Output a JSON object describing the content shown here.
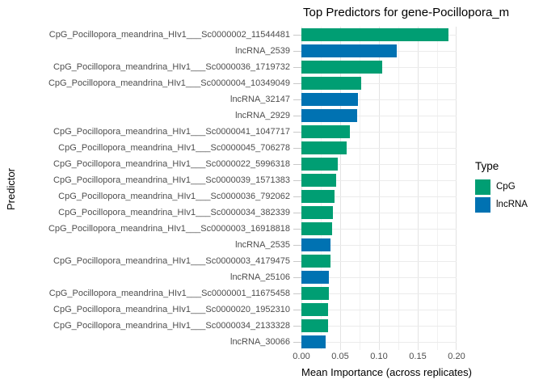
{
  "colors": {
    "background": "#ffffff",
    "cpg": "#009E73",
    "lncrna": "#0072B2",
    "grid_major": "#e3e3e3",
    "grid_minor": "#f1f1f1",
    "axis_text": "#4d4d4d",
    "tick": "#c9c9c9",
    "text": "#000000"
  },
  "chart_data": {
    "type": "bar",
    "orientation": "horizontal",
    "title": "Top Predictors for gene-Pocillopora_m",
    "xlabel": "Mean Importance (across replicates)",
    "ylabel": "Predictor",
    "xlim": [
      0,
      0.2
    ],
    "xticks": [
      0.0,
      0.05,
      0.1,
      0.15,
      0.2
    ],
    "xtick_labels": [
      "0.00",
      "0.05",
      "0.10",
      "0.15",
      "0.20"
    ],
    "grid": true,
    "legend": {
      "title": "Type",
      "position": "right",
      "entries": [
        {
          "label": "CpG",
          "color": "#009E73"
        },
        {
          "label": "lncRNA",
          "color": "#0072B2"
        }
      ]
    },
    "bars": [
      {
        "label": "CpG_Pocillopora_meandrina_HIv1___Sc0000002_11544481",
        "type": "CpG",
        "value": 0.19
      },
      {
        "label": "lncRNA_2539",
        "type": "lncRNA",
        "value": 0.123
      },
      {
        "label": "CpG_Pocillopora_meandrina_HIv1___Sc0000036_1719732",
        "type": "CpG",
        "value": 0.104
      },
      {
        "label": "CpG_Pocillopora_meandrina_HIv1___Sc0000004_10349049",
        "type": "CpG",
        "value": 0.077
      },
      {
        "label": "lncRNA_32147",
        "type": "lncRNA",
        "value": 0.073
      },
      {
        "label": "lncRNA_2929",
        "type": "lncRNA",
        "value": 0.072
      },
      {
        "label": "CpG_Pocillopora_meandrina_HIv1___Sc0000041_1047717",
        "type": "CpG",
        "value": 0.063
      },
      {
        "label": "CpG_Pocillopora_meandrina_HIv1___Sc0000045_706278",
        "type": "CpG",
        "value": 0.058
      },
      {
        "label": "CpG_Pocillopora_meandrina_HIv1___Sc0000022_5996318",
        "type": "CpG",
        "value": 0.047
      },
      {
        "label": "CpG_Pocillopora_meandrina_HIv1___Sc0000039_1571383",
        "type": "CpG",
        "value": 0.045
      },
      {
        "label": "CpG_Pocillopora_meandrina_HIv1___Sc0000036_792062",
        "type": "CpG",
        "value": 0.043
      },
      {
        "label": "CpG_Pocillopora_meandrina_HIv1___Sc0000034_382339",
        "type": "CpG",
        "value": 0.041
      },
      {
        "label": "CpG_Pocillopora_meandrina_HIv1___Sc0000003_16918818",
        "type": "CpG",
        "value": 0.04
      },
      {
        "label": "lncRNA_2535",
        "type": "lncRNA",
        "value": 0.038
      },
      {
        "label": "CpG_Pocillopora_meandrina_HIv1___Sc0000003_4179475",
        "type": "CpG",
        "value": 0.037
      },
      {
        "label": "lncRNA_25106",
        "type": "lncRNA",
        "value": 0.035
      },
      {
        "label": "CpG_Pocillopora_meandrina_HIv1___Sc0000001_11675458",
        "type": "CpG",
        "value": 0.035
      },
      {
        "label": "CpG_Pocillopora_meandrina_HIv1___Sc0000020_1952310",
        "type": "CpG",
        "value": 0.034
      },
      {
        "label": "CpG_Pocillopora_meandrina_HIv1___Sc0000034_2133328",
        "type": "CpG",
        "value": 0.034
      },
      {
        "label": "lncRNA_30066",
        "type": "lncRNA",
        "value": 0.031
      }
    ]
  }
}
